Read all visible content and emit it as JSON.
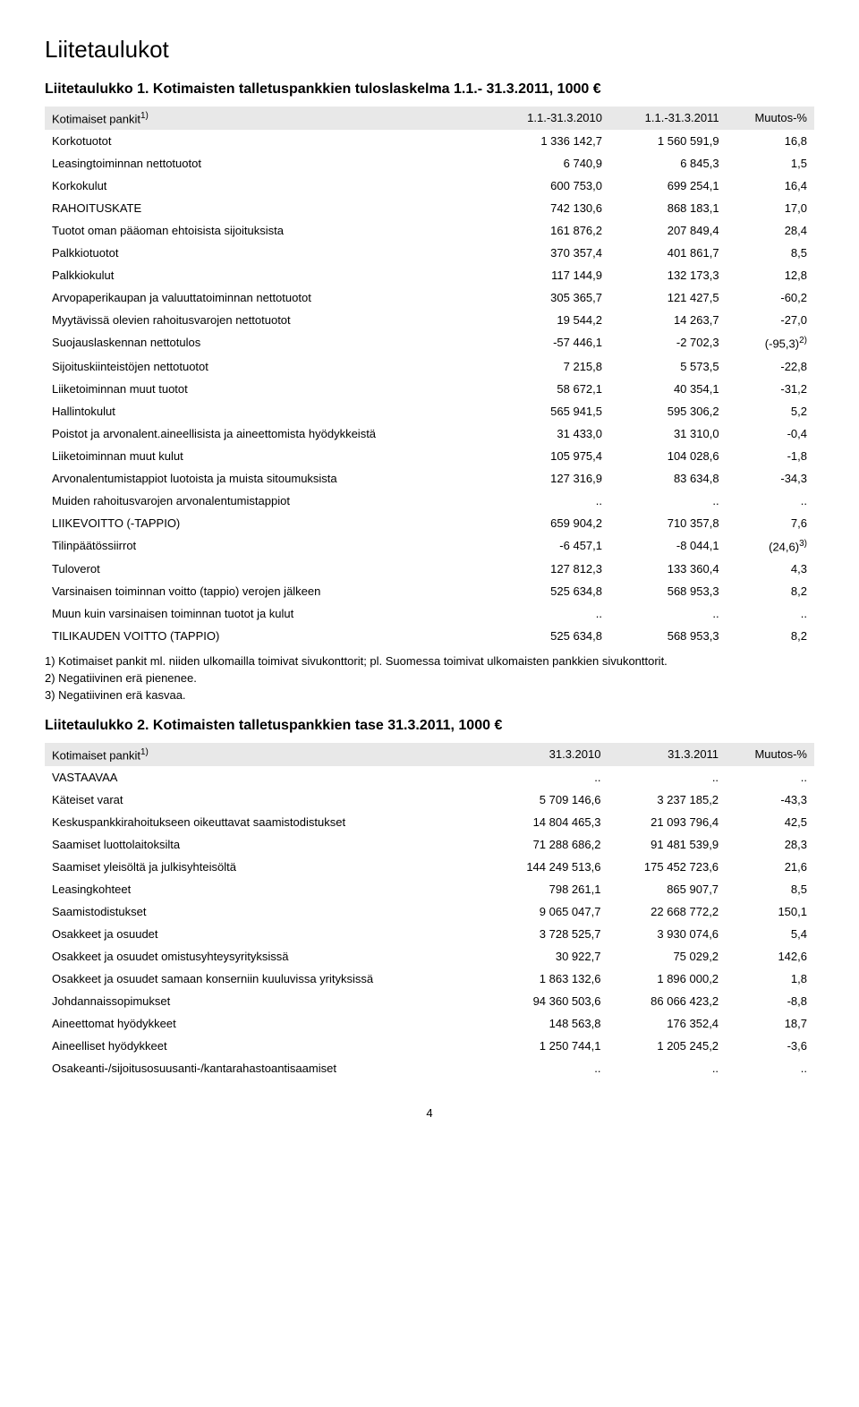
{
  "page_title": "Liitetaulukot",
  "page_number": "4",
  "table1": {
    "title": "Liitetaulukko 1. Kotimaisten talletuspankkien tuloslaskelma 1.1.- 31.3.2011, 1000 €",
    "header_label": "Kotimaiset pankit",
    "header_sup": "1)",
    "col1": "1.1.-31.3.2010",
    "col2": "1.1.-31.3.2011",
    "col3": "Muutos-%",
    "rows": [
      {
        "label": "Korkotuotot",
        "c1": "1 336 142,7",
        "c2": "1 560 591,9",
        "c3": "16,8"
      },
      {
        "label": "Leasingtoiminnan nettotuotot",
        "c1": "6 740,9",
        "c2": "6 845,3",
        "c3": "1,5"
      },
      {
        "label": "Korkokulut",
        "c1": "600 753,0",
        "c2": "699 254,1",
        "c3": "16,4"
      },
      {
        "label": "RAHOITUSKATE",
        "c1": "742 130,6",
        "c2": "868 183,1",
        "c3": "17,0"
      },
      {
        "label": "Tuotot oman pääoman ehtoisista sijoituksista",
        "c1": "161 876,2",
        "c2": "207 849,4",
        "c3": "28,4"
      },
      {
        "label": "Palkkiotuotot",
        "c1": "370 357,4",
        "c2": "401 861,7",
        "c3": "8,5"
      },
      {
        "label": "Palkkiokulut",
        "c1": "117 144,9",
        "c2": "132 173,3",
        "c3": "12,8"
      },
      {
        "label": "Arvopaperikaupan ja valuuttatoiminnan nettotuotot",
        "c1": "305 365,7",
        "c2": "121 427,5",
        "c3": "-60,2"
      },
      {
        "label": "Myytävissä olevien rahoitusvarojen nettotuotot",
        "c1": "19 544,2",
        "c2": "14 263,7",
        "c3": "-27,0"
      },
      {
        "label": "Suojauslaskennan nettotulos",
        "c1": "-57 446,1",
        "c2": "-2 702,3",
        "c3": "(-95,3)",
        "c3sup": "2)"
      },
      {
        "label": "Sijoituskiinteistöjen nettotuotot",
        "c1": "7 215,8",
        "c2": "5 573,5",
        "c3": "-22,8"
      },
      {
        "label": "Liiketoiminnan muut tuotot",
        "c1": "58 672,1",
        "c2": "40 354,1",
        "c3": "-31,2"
      },
      {
        "label": "Hallintokulut",
        "c1": "565 941,5",
        "c2": "595 306,2",
        "c3": "5,2"
      },
      {
        "label": "Poistot ja arvonalent.aineellisista ja aineettomista hyödykkeistä",
        "c1": "31 433,0",
        "c2": "31 310,0",
        "c3": "-0,4"
      },
      {
        "label": "Liiketoiminnan muut kulut",
        "c1": "105 975,4",
        "c2": "104 028,6",
        "c3": "-1,8"
      },
      {
        "label": "Arvonalentumistappiot luotoista ja muista sitoumuksista",
        "c1": "127 316,9",
        "c2": "83 634,8",
        "c3": "-34,3"
      },
      {
        "label": "Muiden rahoitusvarojen arvonalentumistappiot",
        "c1": "..",
        "c2": "..",
        "c3": ".."
      },
      {
        "label": "LIIKEVOITTO (-TAPPIO)",
        "c1": "659 904,2",
        "c2": "710 357,8",
        "c3": "7,6"
      },
      {
        "label": "Tilinpäätössiirrot",
        "c1": "-6 457,1",
        "c2": "-8 044,1",
        "c3": "(24,6)",
        "c3sup": "3)"
      },
      {
        "label": "Tuloverot",
        "c1": "127 812,3",
        "c2": "133 360,4",
        "c3": "4,3"
      },
      {
        "label": "Varsinaisen toiminnan voitto (tappio) verojen jälkeen",
        "c1": "525 634,8",
        "c2": "568 953,3",
        "c3": "8,2"
      },
      {
        "label": "Muun kuin varsinaisen toiminnan tuotot ja kulut",
        "c1": "..",
        "c2": "..",
        "c3": ".."
      },
      {
        "label": "TILIKAUDEN VOITTO (TAPPIO)",
        "c1": "525 634,8",
        "c2": "568 953,3",
        "c3": "8,2"
      }
    ],
    "footnotes": [
      "1) Kotimaiset pankit ml. niiden ulkomailla toimivat sivukonttorit; pl. Suomessa toimivat ulkomaisten pankkien sivukonttorit.",
      "2) Negatiivinen erä pienenee.",
      "3) Negatiivinen erä kasvaa."
    ]
  },
  "table2": {
    "title": "Liitetaulukko 2. Kotimaisten talletuspankkien tase 31.3.2011, 1000 €",
    "header_label": "Kotimaiset pankit",
    "header_sup": "1)",
    "col1": "31.3.2010",
    "col2": "31.3.2011",
    "col3": "Muutos-%",
    "rows": [
      {
        "label": "VASTAAVAA",
        "c1": "..",
        "c2": "..",
        "c3": ".."
      },
      {
        "label": "Käteiset varat",
        "c1": "5 709 146,6",
        "c2": "3 237 185,2",
        "c3": "-43,3"
      },
      {
        "label": "Keskuspankkirahoitukseen oikeuttavat saamistodistukset",
        "c1": "14 804 465,3",
        "c2": "21 093 796,4",
        "c3": "42,5"
      },
      {
        "label": "Saamiset luottolaitoksilta",
        "c1": "71 288 686,2",
        "c2": "91 481 539,9",
        "c3": "28,3"
      },
      {
        "label": "Saamiset yleisöltä ja julkisyhteisöltä",
        "c1": "144 249 513,6",
        "c2": "175 452 723,6",
        "c3": "21,6"
      },
      {
        "label": "Leasingkohteet",
        "c1": "798 261,1",
        "c2": "865 907,7",
        "c3": "8,5"
      },
      {
        "label": "Saamistodistukset",
        "c1": "9 065 047,7",
        "c2": "22 668 772,2",
        "c3": "150,1"
      },
      {
        "label": "Osakkeet ja osuudet",
        "c1": "3 728 525,7",
        "c2": "3 930 074,6",
        "c3": "5,4"
      },
      {
        "label": "Osakkeet ja osuudet omistusyhteysyrityksissä",
        "c1": "30 922,7",
        "c2": "75 029,2",
        "c3": "142,6"
      },
      {
        "label": "Osakkeet ja osuudet samaan konserniin kuuluvissa yrityksissä",
        "c1": "1 863 132,6",
        "c2": "1 896 000,2",
        "c3": "1,8"
      },
      {
        "label": "Johdannaissopimukset",
        "c1": "94 360 503,6",
        "c2": "86 066 423,2",
        "c3": "-8,8"
      },
      {
        "label": "Aineettomat hyödykkeet",
        "c1": "148 563,8",
        "c2": "176 352,4",
        "c3": "18,7"
      },
      {
        "label": "Aineelliset hyödykkeet",
        "c1": "1 250 744,1",
        "c2": "1 205 245,2",
        "c3": "-3,6"
      },
      {
        "label": "Osakeanti-/sijoitusosuusanti-/kantarahastoantisaamiset",
        "c1": "..",
        "c2": "..",
        "c3": ".."
      }
    ]
  }
}
